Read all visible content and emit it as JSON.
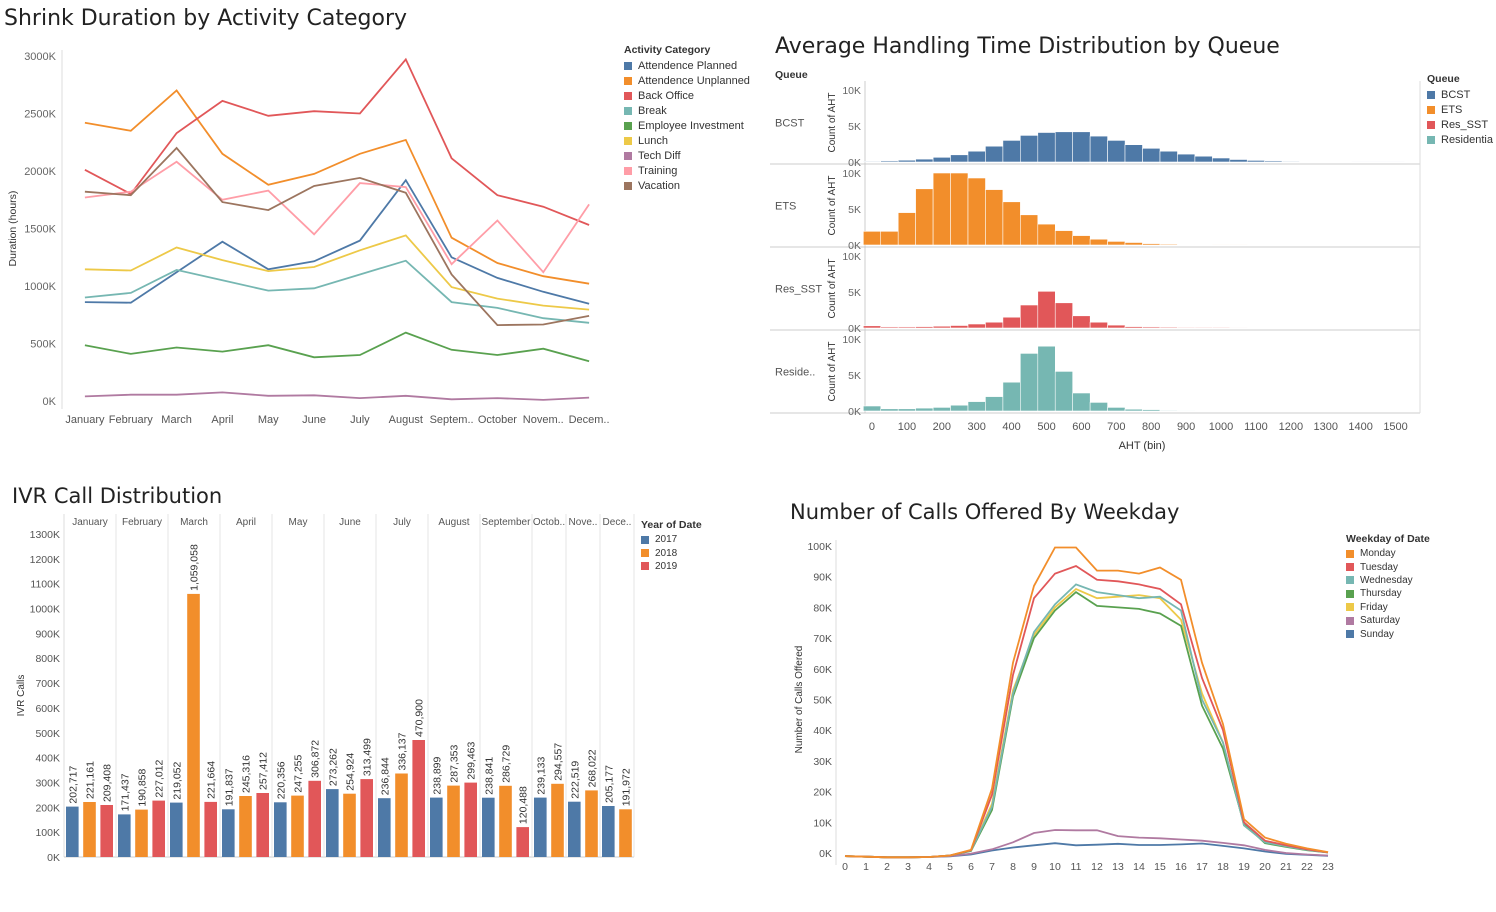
{
  "chart_data": [
    {
      "id": "shrink",
      "type": "line",
      "title": "Shrink Duration by Activity Category",
      "xlabel": "",
      "ylabel": "Duration (hours)",
      "categories": [
        "January",
        "February",
        "March",
        "April",
        "May",
        "June",
        "July",
        "August",
        "Septem..",
        "October",
        "Novem..",
        "Decem.."
      ],
      "y_ticks": [
        "0K",
        "500K",
        "1000K",
        "1500K",
        "2000K",
        "2500K",
        "3000K"
      ],
      "ylim": [
        0,
        3000
      ],
      "legend_title": "Activity Category",
      "legend_position": "right",
      "series": [
        {
          "name": "Attendence Planned",
          "color": "#4e79a7",
          "values": [
            860,
            855,
            1120,
            1385,
            1145,
            1215,
            1395,
            1920,
            1250,
            1070,
            950,
            845
          ]
        },
        {
          "name": "Attendence Unplanned",
          "color": "#f28e2b",
          "values": [
            2420,
            2350,
            2700,
            2150,
            1880,
            1975,
            2150,
            2270,
            1420,
            1200,
            1085,
            1020
          ]
        },
        {
          "name": "Back Office",
          "color": "#e15759",
          "values": [
            2010,
            1800,
            2330,
            2610,
            2480,
            2520,
            2500,
            2970,
            2110,
            1790,
            1690,
            1530
          ]
        },
        {
          "name": "Break",
          "color": "#76b7b2",
          "values": [
            900,
            940,
            1140,
            1050,
            960,
            980,
            1100,
            1220,
            860,
            810,
            720,
            680
          ]
        },
        {
          "name": "Employee Investment",
          "color": "#59a14f",
          "values": [
            485,
            410,
            465,
            430,
            485,
            380,
            400,
            595,
            445,
            400,
            455,
            345
          ]
        },
        {
          "name": "Lunch",
          "color": "#edc948",
          "values": [
            1145,
            1135,
            1335,
            1225,
            1130,
            1165,
            1310,
            1440,
            990,
            890,
            830,
            795
          ]
        },
        {
          "name": "Tech Diff",
          "color": "#b07aa1",
          "values": [
            40,
            55,
            55,
            75,
            45,
            50,
            25,
            45,
            15,
            25,
            10,
            30
          ]
        },
        {
          "name": "Training",
          "color": "#ff9da7",
          "values": [
            1770,
            1820,
            2080,
            1750,
            1830,
            1450,
            1895,
            1860,
            1190,
            1570,
            1120,
            1710
          ]
        },
        {
          "name": "Vacation",
          "color": "#9c755f",
          "values": [
            1820,
            1790,
            2200,
            1730,
            1660,
            1870,
            1940,
            1810,
            1100,
            660,
            665,
            740
          ]
        }
      ]
    },
    {
      "id": "aht",
      "type": "bar",
      "title": "Average Handling Time Distribution by Queue",
      "xlabel": "AHT (bin)",
      "ylabel": "Count of AHT",
      "row_header": "Queue",
      "x_ticks": [
        0,
        100,
        200,
        300,
        400,
        500,
        600,
        700,
        800,
        900,
        1000,
        1100,
        1200,
        1300,
        1400,
        1500
      ],
      "bin_width": 50,
      "y_ticks": [
        "0K",
        "5K",
        "10K"
      ],
      "ylim": [
        0,
        10000
      ],
      "legend_title": "Queue",
      "legend_position": "right",
      "rows": [
        {
          "label": "BCST",
          "legend": "BCST",
          "color": "#4e79a7",
          "values": [
            100,
            150,
            250,
            400,
            650,
            1000,
            1500,
            2200,
            3000,
            3700,
            4100,
            4200,
            4200,
            3600,
            3000,
            2400,
            1900,
            1500,
            1100,
            800,
            550,
            350,
            220,
            150,
            100,
            70,
            50,
            30,
            20,
            15,
            10
          ]
        },
        {
          "label": "ETS",
          "legend": "ETS",
          "color": "#f28e2b",
          "values": [
            1900,
            1900,
            4500,
            7800,
            10000,
            10000,
            9300,
            7700,
            6000,
            4200,
            2900,
            2000,
            1300,
            800,
            500,
            350,
            200,
            120,
            70,
            40,
            20,
            10
          ]
        },
        {
          "label": "Res_SST",
          "legend": "Res_SST",
          "color": "#e15759",
          "values": [
            300,
            150,
            150,
            200,
            250,
            350,
            550,
            800,
            1500,
            3200,
            5100,
            3500,
            1700,
            800,
            400,
            200,
            150,
            120,
            100,
            100,
            100,
            80,
            60,
            40
          ]
        },
        {
          "label": "Reside..",
          "legend": "Residentia",
          "color": "#76b7b2",
          "values": [
            700,
            300,
            300,
            400,
            500,
            800,
            1300,
            2000,
            4000,
            8000,
            9000,
            5500,
            2500,
            1200,
            500,
            250,
            200,
            100,
            80,
            50
          ]
        }
      ]
    },
    {
      "id": "ivr",
      "type": "bar",
      "title": "IVR Call Distribution",
      "xlabel": "",
      "ylabel": "IVR Calls",
      "y_ticks": [
        "0K",
        "100K",
        "200K",
        "300K",
        "400K",
        "500K",
        "600K",
        "700K",
        "800K",
        "900K",
        "1000K",
        "1100K",
        "1200K",
        "1300K"
      ],
      "ylim": [
        0,
        1300000
      ],
      "legend_title": "Year of Date",
      "legend_position": "right",
      "legend": [
        {
          "name": "2017",
          "color": "#4e79a7"
        },
        {
          "name": "2018",
          "color": "#f28e2b"
        },
        {
          "name": "2019",
          "color": "#e15759"
        }
      ],
      "months": [
        {
          "name": "January",
          "bars": [
            {
              "year": "2017",
              "value": 202717,
              "label": "202,717"
            },
            {
              "year": "2018",
              "value": 221161,
              "label": "221,161"
            },
            {
              "year": "2019",
              "value": 209408,
              "label": "209,408"
            }
          ]
        },
        {
          "name": "February",
          "bars": [
            {
              "year": "2017",
              "value": 171437,
              "label": "171,437"
            },
            {
              "year": "2018",
              "value": 190858,
              "label": "190,858"
            },
            {
              "year": "2019",
              "value": 227012,
              "label": "227,012"
            }
          ]
        },
        {
          "name": "March",
          "bars": [
            {
              "year": "2017",
              "value": 219052,
              "label": "219,052"
            },
            {
              "year": "2018",
              "value": 1059058,
              "label": "1,059,058"
            },
            {
              "year": "2019",
              "value": 221664,
              "label": "221,664"
            }
          ]
        },
        {
          "name": "April",
          "bars": [
            {
              "year": "2017",
              "value": 191837,
              "label": "191,837"
            },
            {
              "year": "2018",
              "value": 245316,
              "label": "245,316"
            },
            {
              "year": "2019",
              "value": 257412,
              "label": "257,412"
            }
          ]
        },
        {
          "name": "May",
          "bars": [
            {
              "year": "2017",
              "value": 220356,
              "label": "220,356"
            },
            {
              "year": "2018",
              "value": 247255,
              "label": "247,255"
            },
            {
              "year": "2019",
              "value": 306872,
              "label": "306,872"
            }
          ]
        },
        {
          "name": "June",
          "bars": [
            {
              "year": "2017",
              "value": 273262,
              "label": "273,262"
            },
            {
              "year": "2018",
              "value": 254924,
              "label": "254,924"
            },
            {
              "year": "2019",
              "value": 313499,
              "label": "313,499"
            }
          ]
        },
        {
          "name": "July",
          "bars": [
            {
              "year": "2017",
              "value": 236844,
              "label": "236,844"
            },
            {
              "year": "2018",
              "value": 336137,
              "label": "336,137"
            },
            {
              "year": "2019",
              "value": 470900,
              "label": "470,900"
            }
          ]
        },
        {
          "name": "August",
          "bars": [
            {
              "year": "2017",
              "value": 238899,
              "label": "238,899"
            },
            {
              "year": "2018",
              "value": 287353,
              "label": "287,353"
            },
            {
              "year": "2019",
              "value": 299463,
              "label": "299,463"
            }
          ]
        },
        {
          "name": "September",
          "bars": [
            {
              "year": "2017",
              "value": 238841,
              "label": "238,841"
            },
            {
              "year": "2018",
              "value": 286729,
              "label": "286,729"
            },
            {
              "year": "2019",
              "value": 120488,
              "label": "120,488"
            }
          ]
        },
        {
          "name": "Octob..",
          "bars": [
            {
              "year": "2017",
              "value": 239133,
              "label": "239,133"
            },
            {
              "year": "2018",
              "value": 294557,
              "label": "294,557"
            }
          ]
        },
        {
          "name": "Nove..",
          "bars": [
            {
              "year": "2017",
              "value": 222519,
              "label": "222,519"
            },
            {
              "year": "2018",
              "value": 268022,
              "label": "268,022"
            }
          ]
        },
        {
          "name": "Dece..",
          "bars": [
            {
              "year": "2017",
              "value": 205177,
              "label": "205,177"
            },
            {
              "year": "2018",
              "value": 191972,
              "label": "191,972"
            }
          ]
        }
      ]
    },
    {
      "id": "weekday",
      "type": "line",
      "title": "Number of Calls Offered By Weekday",
      "xlabel": "",
      "ylabel": "Number of Calls Offered",
      "x": [
        0,
        1,
        2,
        3,
        4,
        5,
        6,
        7,
        8,
        9,
        10,
        11,
        12,
        13,
        14,
        15,
        16,
        17,
        18,
        19,
        20,
        21,
        22,
        23
      ],
      "y_ticks": [
        "0K",
        "10K",
        "20K",
        "30K",
        "40K",
        "50K",
        "60K",
        "70K",
        "80K",
        "90K",
        "100K"
      ],
      "ylim": [
        0,
        100000
      ],
      "legend_title": "Weekday of Date",
      "legend_position": "right",
      "series": [
        {
          "name": "Monday",
          "color": "#f28e2b",
          "values": [
            -1000,
            -1200,
            -1400,
            -1400,
            -1300,
            -800,
            1000,
            21000,
            62000,
            87000,
            99500,
            99500,
            92000,
            92000,
            91000,
            93000,
            89000,
            62000,
            42000,
            11000,
            5000,
            3000,
            1500,
            300
          ]
        },
        {
          "name": "Tuesday",
          "color": "#e15759",
          "values": [
            -1000,
            -1200,
            -1400,
            -1400,
            -1300,
            -800,
            900,
            19000,
            58000,
            83000,
            91000,
            93500,
            89000,
            88500,
            87500,
            86000,
            81000,
            57000,
            40000,
            10000,
            4000,
            2500,
            1200,
            200
          ]
        },
        {
          "name": "Wednesday",
          "color": "#76b7b2",
          "values": [
            -1000,
            -1200,
            -1400,
            -1400,
            -1300,
            -800,
            800,
            15000,
            52000,
            72000,
            81000,
            87500,
            85000,
            84000,
            83000,
            83500,
            79000,
            50000,
            36000,
            9000,
            3500,
            2200,
            1000,
            200
          ]
        },
        {
          "name": "Thursday",
          "color": "#59a14f",
          "values": [
            -1000,
            -1200,
            -1400,
            -1400,
            -1300,
            -800,
            700,
            14000,
            51000,
            70000,
            79000,
            85000,
            80500,
            80000,
            79500,
            78000,
            74000,
            48000,
            34000,
            9500,
            3200,
            2000,
            900,
            150
          ]
        },
        {
          "name": "Friday",
          "color": "#edc948",
          "values": [
            -1000,
            -1200,
            -1400,
            -1400,
            -1300,
            -800,
            800,
            16000,
            53000,
            71000,
            80000,
            86000,
            83000,
            83500,
            84000,
            83000,
            76000,
            52000,
            36000,
            9000,
            3500,
            2300,
            1000,
            200
          ]
        },
        {
          "name": "Saturday",
          "color": "#b07aa1",
          "values": [
            -1000,
            -1200,
            -1400,
            -1400,
            -1300,
            -1000,
            -200,
            1200,
            3500,
            6500,
            7500,
            7400,
            7400,
            5500,
            5000,
            4800,
            4400,
            4000,
            3300,
            2500,
            1000,
            0,
            -500,
            -800
          ]
        },
        {
          "name": "Sunday",
          "color": "#4e79a7",
          "values": [
            -1000,
            -1200,
            -1400,
            -1400,
            -1300,
            -1100,
            -500,
            800,
            1800,
            2500,
            3200,
            2500,
            2700,
            3000,
            2600,
            2600,
            2800,
            3100,
            2300,
            1500,
            500,
            -300,
            -600,
            -900
          ]
        }
      ]
    }
  ]
}
